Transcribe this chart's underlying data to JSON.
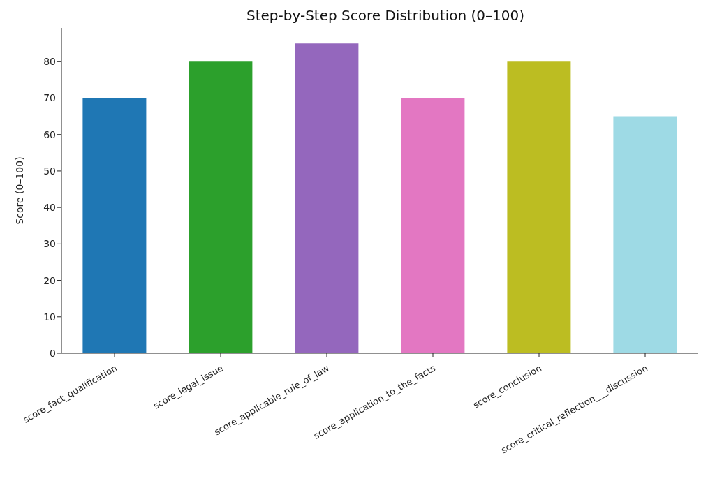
{
  "chart_data": {
    "type": "bar",
    "title": "Step-by-Step Score Distribution (0–100)",
    "ylabel": "Score (0–100)",
    "categories": [
      "score_fact_qualification",
      "score_legal_issue",
      "score_applicable_rule_of_law",
      "score_application_to_the_facts",
      "score_conclusion",
      "score_critical_reflection___discussion"
    ],
    "values": [
      70,
      80,
      85,
      70,
      80,
      65
    ],
    "colors": [
      "#1f77b4",
      "#2ca02c",
      "#9467bd",
      "#e377c2",
      "#bcbd22",
      "#9edae5"
    ],
    "ylim": [
      0,
      89.25
    ],
    "yticks": [
      0,
      10,
      20,
      30,
      40,
      50,
      60,
      70,
      80
    ],
    "grid": false
  }
}
